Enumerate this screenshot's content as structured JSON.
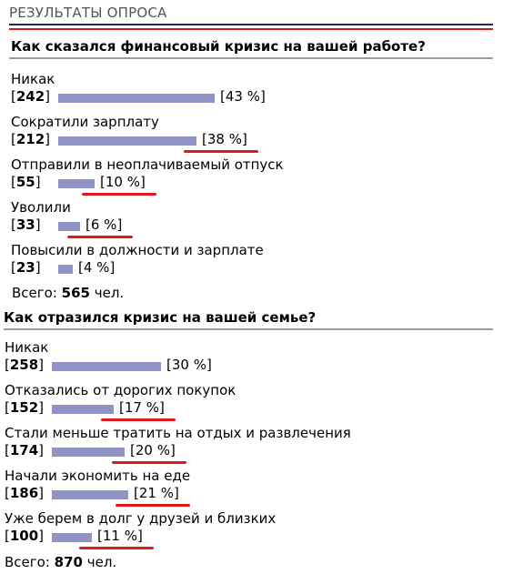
{
  "header": {
    "title": "РЕЗУЛЬТАТЫ ОПРОСА"
  },
  "colors": {
    "bar": "#8f93c6",
    "highlight": "#e0191d",
    "header_rule_top": "#1b2a57",
    "header_rule_bottom": "#cc1f1f"
  },
  "polls": [
    {
      "question": "Как сказался финансовый кризис на вашей работе?",
      "options": [
        {
          "label": "Никак",
          "count": "242",
          "percent": "43 %",
          "share": 0.43,
          "highlighted": false
        },
        {
          "label": "Сократили зарплату",
          "count": "212",
          "percent": "38 %",
          "share": 0.38,
          "highlighted": true
        },
        {
          "label": "Отправили в неоплачиваемый отпуск",
          "count": "55",
          "percent": "10 %",
          "share": 0.1,
          "highlighted": true
        },
        {
          "label": "Уволили",
          "count": "33",
          "percent": "6 %",
          "share": 0.06,
          "highlighted": true
        },
        {
          "label": "Повысили в должности и зарплате",
          "count": "23",
          "percent": "4 %",
          "share": 0.04,
          "highlighted": false
        }
      ],
      "total_label": "Всего:",
      "total_value": "565",
      "total_unit": "чел."
    },
    {
      "question": "Как отразился кризис на вашей семье?",
      "options": [
        {
          "label": "Никак",
          "count": "258",
          "percent": "30 %",
          "share": 0.3,
          "highlighted": false
        },
        {
          "label": "Отказались от дорогих покупок",
          "count": "152",
          "percent": "17 %",
          "share": 0.17,
          "highlighted": true
        },
        {
          "label": "Стали меньше тратить на отдых и развлечения",
          "count": "174",
          "percent": "20 %",
          "share": 0.2,
          "highlighted": true
        },
        {
          "label": "Начали экономить на еде",
          "count": "186",
          "percent": "21 %",
          "share": 0.21,
          "highlighted": true
        },
        {
          "label": "Уже берем в долг у друзей и близких",
          "count": "100",
          "percent": "11 %",
          "share": 0.11,
          "highlighted": true
        }
      ],
      "total_label": "Всего:",
      "total_value": "870",
      "total_unit": "чел."
    }
  ]
}
